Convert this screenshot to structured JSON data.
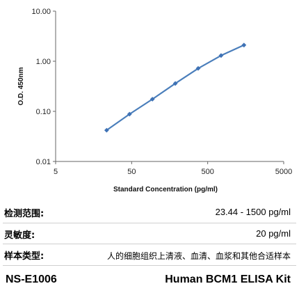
{
  "chart_data": {
    "type": "line",
    "xlabel": "Standard Concentration (pg/ml)",
    "ylabel": "O.D.  450nm",
    "x_scale": "log",
    "y_scale": "log",
    "xlim": [
      5,
      5000
    ],
    "ylim": [
      0.01,
      10
    ],
    "x_ticks": [
      "5",
      "50",
      "500",
      "5000"
    ],
    "y_ticks": [
      "10.00",
      "1.00",
      "0.10",
      "0.01"
    ],
    "grid": false,
    "series": [
      {
        "x": [
          23.44,
          46.88,
          93.75,
          187.5,
          375,
          750,
          1500
        ],
        "y": [
          0.042,
          0.088,
          0.175,
          0.36,
          0.72,
          1.3,
          2.1
        ],
        "color": "#4a7ebb",
        "marker_color": "#3f72b5"
      }
    ]
  },
  "specs": [
    {
      "label": "检测范围:",
      "value": "23.44 - 1500 pg/ml"
    },
    {
      "label": "灵敏度:",
      "value": "20 pg/ml"
    },
    {
      "label": "样本类型:",
      "value": "人的细胞组织上清液、血清、血浆和其他合适样本"
    }
  ],
  "footer": {
    "catalog": "NS-E1006",
    "kit_name": "Human BCM1 ELISA Kit"
  }
}
